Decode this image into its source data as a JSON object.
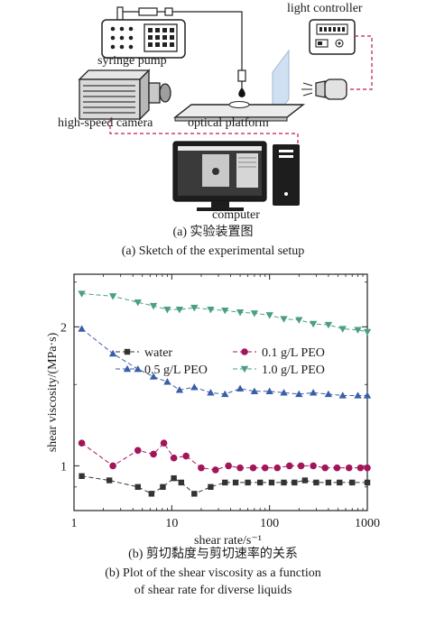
{
  "setup": {
    "labels": {
      "light_controller": "light controller",
      "syringe_pump": "syringe pump",
      "high_speed_camera": "high-speed camera",
      "optical_platform": "optical platform",
      "computer": "computer"
    },
    "caption_cn": "(a) 实验装置图",
    "caption_en": "(a) Sketch of the experimental setup",
    "colors": {
      "link_dashed": "#c2185b",
      "line": "#222222"
    }
  },
  "chart_data": {
    "type": "scatter",
    "xlabel": "shear rate/s⁻¹",
    "ylabel": "shear viscosity/(MPa·s)",
    "xscale": "log",
    "yscale": "log",
    "xlim": [
      1,
      1000
    ],
    "ylim": [
      0.8,
      2.6
    ],
    "xticks": [
      1,
      10,
      100,
      1000
    ],
    "xtick_labels": [
      "1",
      "10",
      "100",
      "1000"
    ],
    "yticks": [
      1,
      2
    ],
    "ytick_labels": [
      "1",
      "2"
    ],
    "legend_position": "upper-center",
    "series": [
      {
        "name": "water",
        "marker": "square",
        "color": "#333333",
        "x": [
          1.2,
          2.3,
          4.5,
          6.2,
          8.1,
          10.5,
          12.5,
          17,
          25,
          35,
          45,
          60,
          80,
          105,
          140,
          180,
          230,
          300,
          400,
          520,
          700,
          1000
        ],
        "y": [
          0.95,
          0.93,
          0.9,
          0.87,
          0.9,
          0.94,
          0.92,
          0.87,
          0.9,
          0.92,
          0.92,
          0.92,
          0.92,
          0.92,
          0.92,
          0.92,
          0.93,
          0.92,
          0.92,
          0.92,
          0.92,
          0.92
        ]
      },
      {
        "name": "0.1 g/L PEO",
        "marker": "circle",
        "color": "#a3155a",
        "x": [
          1.2,
          2.5,
          4.5,
          6.5,
          8.3,
          10.5,
          14,
          20,
          28,
          38,
          50,
          68,
          90,
          120,
          160,
          210,
          280,
          370,
          490,
          650,
          850,
          1000
        ],
        "y": [
          1.12,
          1.0,
          1.08,
          1.06,
          1.12,
          1.04,
          1.05,
          0.99,
          0.98,
          1.0,
          0.99,
          0.99,
          0.99,
          0.99,
          1.0,
          1.0,
          1.0,
          0.99,
          0.99,
          0.99,
          0.99,
          0.99
        ]
      },
      {
        "name": "0.5 g/L PEO",
        "marker": "triangle-up",
        "color": "#3a5ea8",
        "x": [
          1.2,
          2.5,
          4.5,
          6.5,
          9,
          12,
          17,
          25,
          35,
          50,
          70,
          100,
          140,
          200,
          280,
          400,
          560,
          800,
          1000
        ],
        "y": [
          1.98,
          1.75,
          1.62,
          1.56,
          1.52,
          1.46,
          1.48,
          1.44,
          1.43,
          1.47,
          1.45,
          1.45,
          1.44,
          1.43,
          1.44,
          1.43,
          1.42,
          1.42,
          1.42
        ]
      },
      {
        "name": "1.0 g/L PEO",
        "marker": "triangle-down",
        "color": "#4a9e86",
        "x": [
          1.2,
          2.5,
          4.5,
          6.5,
          9,
          12,
          17,
          25,
          35,
          50,
          70,
          100,
          140,
          200,
          280,
          400,
          560,
          800,
          1000
        ],
        "y": [
          2.36,
          2.33,
          2.26,
          2.22,
          2.18,
          2.18,
          2.2,
          2.18,
          2.17,
          2.15,
          2.14,
          2.12,
          2.08,
          2.07,
          2.03,
          2.02,
          1.98,
          1.97,
          1.95
        ]
      }
    ]
  },
  "chart_caption": {
    "cn": "(b) 剪切黏度与剪切速率的关系",
    "en_line1": "(b) Plot of the shear viscosity as a function",
    "en_line2": "of shear rate for diverse liquids"
  }
}
